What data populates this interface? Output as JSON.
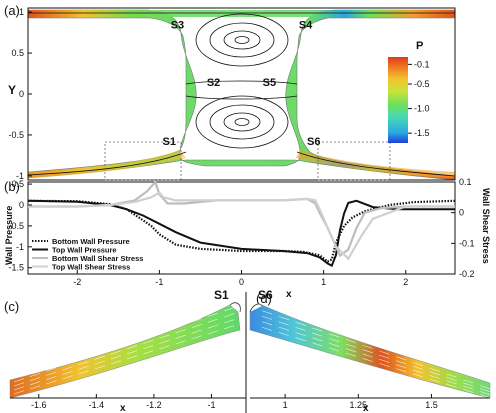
{
  "panel_labels": {
    "a": "(a)",
    "b": "(b)",
    "c": "(c)",
    "d": "(d)"
  },
  "colorbar": {
    "title": "P",
    "ticks": [
      "-0.1",
      "-0.5",
      "-1.0",
      "-1.5"
    ],
    "tick_values": [
      -0.1,
      -0.5,
      -1.0,
      -1.5
    ],
    "range": [
      -1.7,
      0.05
    ],
    "colors": [
      "#1f3fd6",
      "#2aa7e0",
      "#46d9b8",
      "#6ee05a",
      "#c9e23a",
      "#f2c22e",
      "#f07a22",
      "#e03a1c"
    ]
  },
  "stagnation_points": [
    "S1",
    "S2",
    "S3",
    "S4",
    "S5",
    "S6"
  ],
  "chart_data": [
    {
      "type": "contour",
      "panel": "a",
      "xlabel": "",
      "ylabel": "Y",
      "xlim": [
        -2.6,
        2.6
      ],
      "ylim": [
        -1.05,
        1.05
      ],
      "x_ticks": [
        "-2",
        "-1",
        "0",
        "1",
        "2"
      ],
      "y_ticks": [
        "1",
        "0.5",
        "0",
        "-0.5",
        "-1"
      ],
      "y_tick_values": [
        1,
        0.5,
        0,
        -0.5,
        -1
      ],
      "x_tick_values": [
        -2,
        -1,
        0,
        1,
        2
      ],
      "labels": [
        {
          "text": "S3",
          "x": -0.78,
          "y": 0.8
        },
        {
          "text": "S4",
          "x": 0.78,
          "y": 0.8
        },
        {
          "text": "S2",
          "x": -0.34,
          "y": 0.1
        },
        {
          "text": "S5",
          "x": 0.34,
          "y": 0.1
        },
        {
          "text": "S1",
          "x": -0.88,
          "y": -0.62
        },
        {
          "text": "S6",
          "x": 0.88,
          "y": -0.62
        }
      ]
    },
    {
      "type": "line",
      "panel": "b",
      "xlabel": "x",
      "ylabel": "Wall Pressure",
      "y2label": "Wall Shear Stress",
      "xlim": [
        -2.6,
        2.6
      ],
      "ylim": [
        -1.65,
        0.55
      ],
      "y2lim": [
        -0.2,
        0.1
      ],
      "x_ticks": [
        "-2",
        "-1",
        "0",
        "1",
        "2"
      ],
      "x_tick_values": [
        -2,
        -1,
        0,
        1,
        2
      ],
      "y_ticks": [
        "0.5",
        "0",
        "-0.5",
        "-1",
        "-1.5"
      ],
      "y_tick_values": [
        0.5,
        0,
        -0.5,
        -1,
        -1.5
      ],
      "y2_ticks": [
        "0.1",
        "0",
        "-0.1",
        "-0.2"
      ],
      "y2_tick_values": [
        0.1,
        0,
        -0.1,
        -0.2
      ],
      "legend": "bottom-left",
      "series": [
        {
          "name": "Bottom Wall Pressure",
          "axis": "left",
          "color": "#111111",
          "style": "dotted",
          "x": [
            -2.6,
            -2.0,
            -1.6,
            -1.4,
            -1.25,
            -1.1,
            -1.0,
            -0.8,
            -0.5,
            0.0,
            0.5,
            0.75,
            0.95,
            1.05,
            1.1,
            1.15,
            1.25,
            1.35,
            1.5,
            1.8,
            2.1,
            2.6
          ],
          "y": [
            0.1,
            0.09,
            0.02,
            -0.1,
            -0.3,
            -0.5,
            -0.7,
            -0.95,
            -1.05,
            -1.1,
            -1.1,
            -1.12,
            -1.2,
            -1.35,
            -1.3,
            -0.9,
            -0.5,
            -0.3,
            -0.15,
            0.0,
            0.07,
            0.1
          ]
        },
        {
          "name": "Top Wall Pressure",
          "axis": "left",
          "color": "#111111",
          "style": "solid",
          "x": [
            -2.6,
            -2.0,
            -1.6,
            -1.4,
            -1.2,
            -1.0,
            -0.8,
            -0.5,
            0.0,
            0.5,
            0.8,
            0.95,
            1.05,
            1.1,
            1.15,
            1.2,
            1.25,
            1.3,
            1.4,
            1.6,
            1.9,
            2.2,
            2.6
          ],
          "y": [
            0.1,
            0.08,
            0.0,
            -0.1,
            -0.25,
            -0.45,
            -0.65,
            -0.9,
            -1.05,
            -1.1,
            -1.15,
            -1.25,
            -1.4,
            -1.45,
            -1.2,
            -0.6,
            -0.2,
            0.05,
            0.1,
            -0.05,
            -0.1,
            -0.1,
            -0.1
          ]
        },
        {
          "name": "Bottom Wall Shear Stress",
          "axis": "right",
          "color": "#bdbdbd",
          "style": "solid",
          "x": [
            -2.6,
            -2.0,
            -1.6,
            -1.3,
            -1.15,
            -1.05,
            -1.0,
            -0.9,
            -0.7,
            -0.3,
            0.0,
            0.5,
            0.8,
            0.9,
            0.95,
            1.05,
            1.2,
            1.3,
            1.4,
            1.5,
            1.7,
            2.0,
            2.6
          ],
          "y": [
            0.02,
            0.02,
            0.025,
            0.04,
            0.07,
            0.1,
            0.06,
            0.03,
            0.03,
            0.04,
            0.04,
            0.04,
            0.045,
            0.03,
            0.0,
            -0.05,
            -0.14,
            -0.12,
            -0.05,
            0.0,
            0.015,
            0.02,
            0.02
          ]
        },
        {
          "name": "Top Wall Shear Stress",
          "axis": "right",
          "color": "#cfcfcf",
          "style": "solid",
          "x": [
            -2.6,
            -2.0,
            -1.6,
            -1.3,
            -1.1,
            -1.0,
            -0.95,
            -0.8,
            -0.5,
            0.0,
            0.5,
            0.8,
            0.9,
            0.97,
            1.05,
            1.15,
            1.3,
            1.45,
            1.6,
            2.0,
            2.6
          ],
          "y": [
            0.02,
            0.02,
            0.025,
            0.035,
            0.05,
            0.065,
            0.05,
            0.04,
            0.04,
            0.04,
            0.04,
            0.045,
            0.04,
            0.0,
            -0.05,
            -0.11,
            -0.15,
            -0.08,
            -0.02,
            0.02,
            0.02
          ]
        }
      ]
    },
    {
      "type": "vector",
      "panel": "c",
      "label": "S1",
      "xlabel": "x",
      "xlim": [
        -1.7,
        -0.88
      ],
      "x_ticks": [
        "-1.6",
        "-1.4",
        "-1.2",
        "-1"
      ],
      "x_tick_values": [
        -1.6,
        -1.4,
        -1.2,
        -1.0
      ]
    },
    {
      "type": "vector",
      "panel": "d",
      "label": "S6",
      "xlabel": "x",
      "xlim": [
        0.88,
        1.7
      ],
      "x_ticks": [
        "1",
        "1.25",
        "1.5"
      ],
      "x_tick_values": [
        1.0,
        1.25,
        1.5
      ]
    }
  ]
}
